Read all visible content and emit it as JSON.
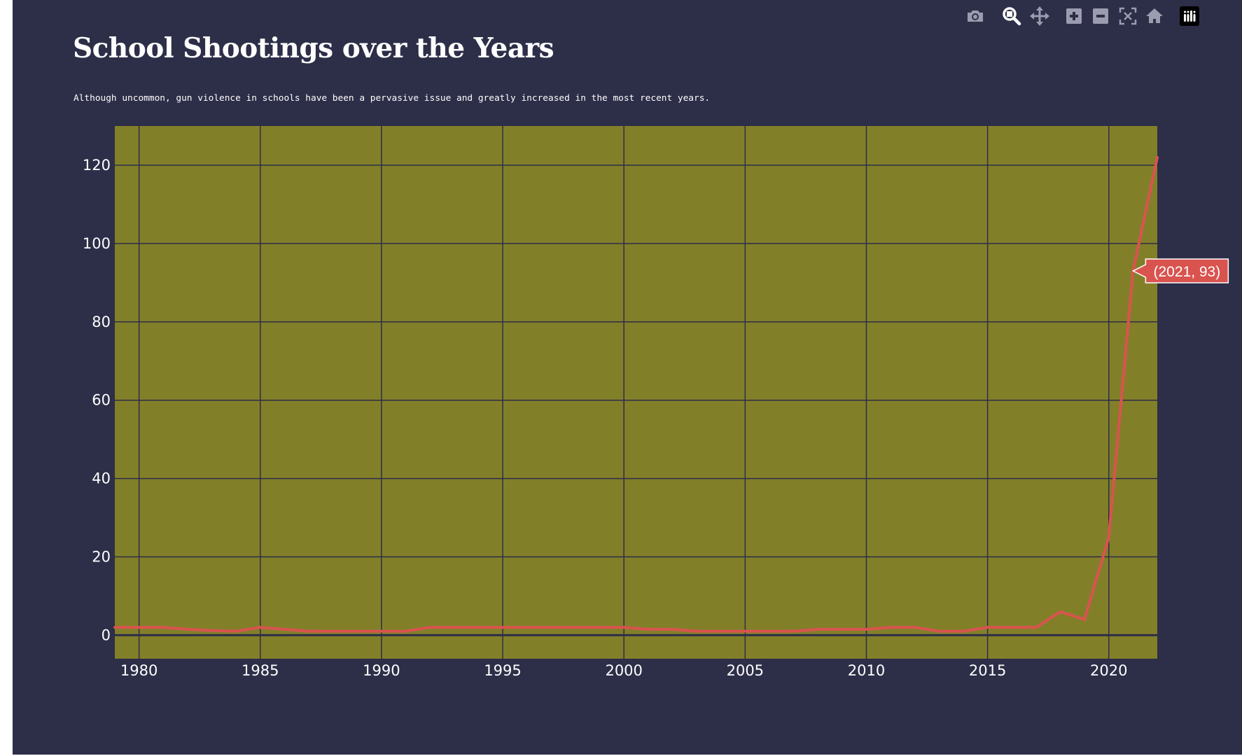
{
  "chart_data": {
    "type": "line",
    "title": "School Shootings over the Years",
    "subtitle": "Although uncommon, gun violence in schools have been a pervasive issue and greatly increased in the most recent years.",
    "xlabel": "",
    "ylabel": "",
    "xlim": [
      1979,
      2022
    ],
    "ylim": [
      -6,
      130
    ],
    "x_ticks": [
      1980,
      1985,
      1990,
      1995,
      2000,
      2005,
      2010,
      2015,
      2020
    ],
    "y_ticks": [
      0,
      20,
      40,
      60,
      80,
      100,
      120
    ],
    "grid": true,
    "series": [
      {
        "color": "#d9534f",
        "x": [
          1979,
          1980,
          1981,
          1982,
          1983,
          1984,
          1985,
          1986,
          1987,
          1988,
          1989,
          1990,
          1991,
          1992,
          1993,
          1994,
          1995,
          1996,
          1997,
          1998,
          1999,
          2000,
          2001,
          2002,
          2003,
          2004,
          2005,
          2006,
          2007,
          2008,
          2009,
          2010,
          2011,
          2012,
          2013,
          2014,
          2015,
          2016,
          2017,
          2018,
          2019,
          2020,
          2021,
          2022
        ],
        "y": [
          2,
          2,
          2,
          1.5,
          1.2,
          1,
          2,
          1.5,
          1,
          1,
          1,
          1,
          1,
          2,
          2,
          2,
          2,
          2,
          2,
          2,
          2,
          2,
          1.5,
          1.5,
          1,
          1,
          1,
          1,
          1,
          1.5,
          1.5,
          1.5,
          2,
          2,
          1,
          1,
          2,
          2,
          2,
          6,
          4,
          25,
          93,
          122
        ]
      }
    ],
    "annotations": [
      {
        "x": 2021,
        "y": 93,
        "text": "(2021, 93)"
      }
    ]
  },
  "colors": {
    "paper_bg": "#2d2e48",
    "plot_bg": "#827f29",
    "grid": "#2d2e48",
    "line": "#d9534f",
    "text": "#ffffff"
  },
  "modebar": {
    "buttons": [
      {
        "name": "camera-icon"
      },
      {
        "name": "zoom-icon"
      },
      {
        "name": "pan-icon"
      },
      {
        "name": "zoom-in-icon"
      },
      {
        "name": "zoom-out-icon"
      },
      {
        "name": "autoscale-icon"
      },
      {
        "name": "home-icon"
      },
      {
        "name": "plotly-logo-icon"
      }
    ]
  }
}
